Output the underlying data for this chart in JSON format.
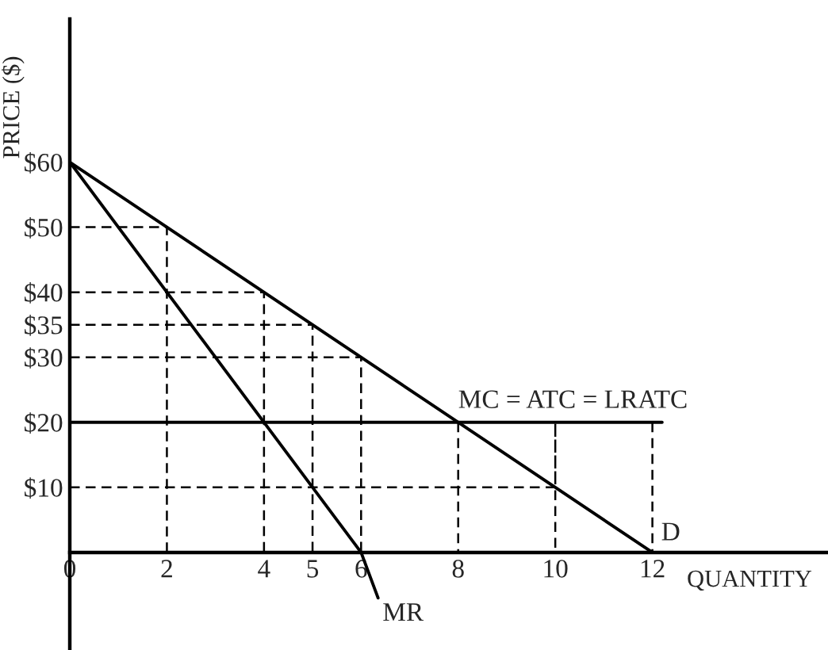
{
  "chart_data": {
    "type": "line",
    "xlabel": "QUANTITY",
    "ylabel": "PRICE ($)",
    "xlim": [
      0,
      15.6
    ],
    "ylim": [
      -15,
      82
    ],
    "xticks": [
      0,
      2,
      4,
      5,
      6,
      8,
      10,
      12
    ],
    "yticks": [
      {
        "value": 10,
        "label": "$10"
      },
      {
        "value": 20,
        "label": "$20"
      },
      {
        "value": 30,
        "label": "$30"
      },
      {
        "value": 35,
        "label": "$35"
      },
      {
        "value": 40,
        "label": "$40"
      },
      {
        "value": 50,
        "label": "$50"
      },
      {
        "value": 60,
        "label": "$60"
      }
    ],
    "grid": false,
    "series": [
      {
        "color": "#000000",
        "x": [
          0,
          12
        ],
        "values": [
          60,
          0
        ]
      },
      {
        "color": "#000000",
        "x": [
          0,
          6,
          6.35
        ],
        "values": [
          60,
          0,
          -7
        ]
      },
      {
        "color": "#000000",
        "x": [
          0,
          12.2
        ],
        "values": [
          20,
          20
        ]
      },
      {
        "color": "#000000",
        "line_style": "dashed",
        "x": [
          0,
          2,
          2
        ],
        "values": [
          50,
          50,
          0
        ]
      },
      {
        "color": "#000000",
        "line_style": "dashed",
        "x": [
          0,
          4,
          4
        ],
        "values": [
          40,
          40,
          0
        ]
      },
      {
        "color": "#000000",
        "line_style": "dashed",
        "x": [
          0,
          5,
          5
        ],
        "values": [
          35,
          35,
          0
        ]
      },
      {
        "color": "#000000",
        "line_style": "dashed",
        "x": [
          0,
          6,
          6
        ],
        "values": [
          30,
          30,
          0
        ]
      },
      {
        "color": "#000000",
        "line_style": "dashed",
        "x": [
          8,
          8
        ],
        "values": [
          20,
          0
        ]
      },
      {
        "color": "#000000",
        "line_style": "dashed",
        "x": [
          0,
          10,
          10,
          10
        ],
        "values": [
          10,
          10,
          20,
          0
        ]
      },
      {
        "color": "#000000",
        "line_style": "dashed",
        "x": [
          12,
          12
        ],
        "values": [
          20,
          0
        ]
      }
    ],
    "annotations": [
      {
        "text": "MC = ATC = LRATC",
        "x": 8,
        "y": 20
      },
      {
        "text": "D",
        "x": 12,
        "y": 0
      },
      {
        "text": "MR",
        "x": 6.35,
        "y": -7
      }
    ]
  }
}
